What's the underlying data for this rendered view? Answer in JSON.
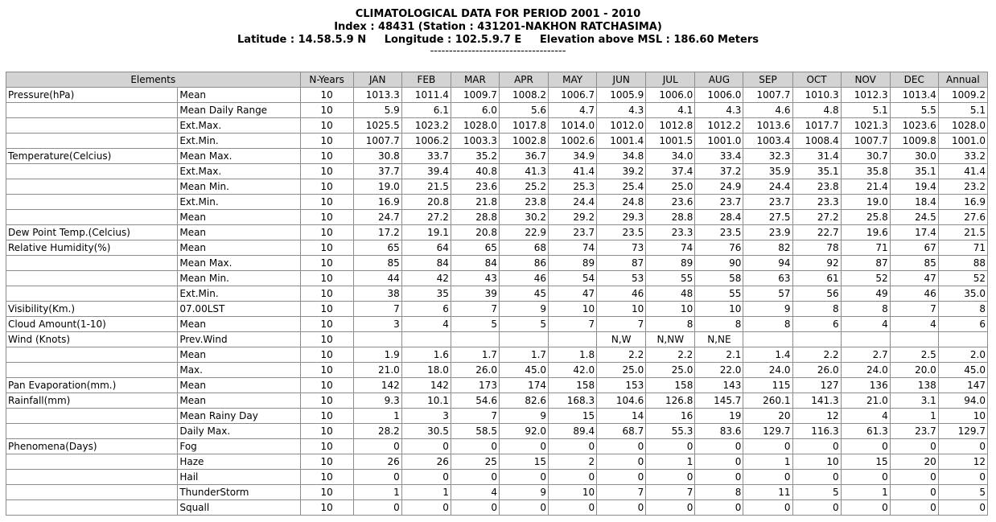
{
  "header": {
    "title": "CLIMATOLOGICAL DATA FOR PERIOD 2001 - 2010",
    "index_line": "Index : 48431 (Station : 431201-NAKHON RATCHASIMA)",
    "coords_line": "Latitude : 14.58.5.9 N     Longitude : 102.5.9.7 E     Elevation above MSL : 186.60 Meters",
    "divider": "------------------------------------"
  },
  "table": {
    "columns": [
      "Elements",
      "N-Years",
      "JAN",
      "FEB",
      "MAR",
      "APR",
      "MAY",
      "JUN",
      "JUL",
      "AUG",
      "SEP",
      "OCT",
      "NOV",
      "DEC",
      "Annual"
    ],
    "rows": [
      {
        "group": "Pressure(hPa)",
        "stat": "Mean",
        "n": "10",
        "v": [
          "1013.3",
          "1011.4",
          "1009.7",
          "1008.2",
          "1006.7",
          "1005.9",
          "1006.0",
          "1006.0",
          "1007.7",
          "1010.3",
          "1012.3",
          "1013.4",
          "1009.2"
        ]
      },
      {
        "group": "",
        "stat": "Mean Daily Range",
        "n": "10",
        "v": [
          "5.9",
          "6.1",
          "6.0",
          "5.6",
          "4.7",
          "4.3",
          "4.1",
          "4.3",
          "4.6",
          "4.8",
          "5.1",
          "5.5",
          "5.1"
        ]
      },
      {
        "group": "",
        "stat": "Ext.Max.",
        "n": "10",
        "v": [
          "1025.5",
          "1023.2",
          "1028.0",
          "1017.8",
          "1014.0",
          "1012.0",
          "1012.8",
          "1012.2",
          "1013.6",
          "1017.7",
          "1021.3",
          "1023.6",
          "1028.0"
        ]
      },
      {
        "group": "",
        "stat": "Ext.Min.",
        "n": "10",
        "v": [
          "1007.7",
          "1006.2",
          "1003.3",
          "1002.8",
          "1002.6",
          "1001.4",
          "1001.5",
          "1001.0",
          "1003.4",
          "1008.4",
          "1007.7",
          "1009.8",
          "1001.0"
        ]
      },
      {
        "group": "Temperature(Celcius)",
        "stat": "Mean Max.",
        "n": "10",
        "v": [
          "30.8",
          "33.7",
          "35.2",
          "36.7",
          "34.9",
          "34.8",
          "34.0",
          "33.4",
          "32.3",
          "31.4",
          "30.7",
          "30.0",
          "33.2"
        ]
      },
      {
        "group": "",
        "stat": "Ext.Max.",
        "n": "10",
        "v": [
          "37.7",
          "39.4",
          "40.8",
          "41.3",
          "41.4",
          "39.2",
          "37.4",
          "37.2",
          "35.9",
          "35.1",
          "35.8",
          "35.1",
          "41.4"
        ]
      },
      {
        "group": "",
        "stat": "Mean Min.",
        "n": "10",
        "v": [
          "19.0",
          "21.5",
          "23.6",
          "25.2",
          "25.3",
          "25.4",
          "25.0",
          "24.9",
          "24.4",
          "23.8",
          "21.4",
          "19.4",
          "23.2"
        ]
      },
      {
        "group": "",
        "stat": "Ext.Min.",
        "n": "10",
        "v": [
          "16.9",
          "20.8",
          "21.8",
          "23.8",
          "24.4",
          "24.8",
          "23.6",
          "23.7",
          "23.7",
          "23.3",
          "19.0",
          "18.4",
          "16.9"
        ]
      },
      {
        "group": "",
        "stat": "Mean",
        "n": "10",
        "v": [
          "24.7",
          "27.2",
          "28.8",
          "30.2",
          "29.2",
          "29.3",
          "28.8",
          "28.4",
          "27.5",
          "27.2",
          "25.8",
          "24.5",
          "27.6"
        ]
      },
      {
        "group": "Dew Point Temp.(Celcius)",
        "stat": "Mean",
        "n": "10",
        "v": [
          "17.2",
          "19.1",
          "20.8",
          "22.9",
          "23.7",
          "23.5",
          "23.3",
          "23.5",
          "23.9",
          "22.7",
          "19.6",
          "17.4",
          "21.5"
        ]
      },
      {
        "group": "Relative Humidity(%)",
        "stat": "Mean",
        "n": "10",
        "v": [
          "65",
          "64",
          "65",
          "68",
          "74",
          "73",
          "74",
          "76",
          "82",
          "78",
          "71",
          "67",
          "71"
        ]
      },
      {
        "group": "",
        "stat": "Mean Max.",
        "n": "10",
        "v": [
          "85",
          "84",
          "84",
          "86",
          "89",
          "87",
          "89",
          "90",
          "94",
          "92",
          "87",
          "85",
          "88"
        ]
      },
      {
        "group": "",
        "stat": "Mean Min.",
        "n": "10",
        "v": [
          "44",
          "42",
          "43",
          "46",
          "54",
          "53",
          "55",
          "58",
          "63",
          "61",
          "52",
          "47",
          "52"
        ]
      },
      {
        "group": "",
        "stat": "Ext.Min.",
        "n": "10",
        "v": [
          "38",
          "35",
          "39",
          "45",
          "47",
          "46",
          "48",
          "55",
          "57",
          "56",
          "49",
          "46",
          "35.0"
        ]
      },
      {
        "group": "Visibility(Km.)",
        "stat": "07.00LST",
        "n": "10",
        "v": [
          "7",
          "6",
          "7",
          "9",
          "10",
          "10",
          "10",
          "10",
          "9",
          "8",
          "8",
          "7",
          "8"
        ]
      },
      {
        "group": "Cloud Amount(1-10)",
        "stat": "Mean",
        "n": "10",
        "v": [
          "3",
          "4",
          "5",
          "5",
          "7",
          "7",
          "8",
          "8",
          "8",
          "6",
          "4",
          "4",
          "6"
        ]
      },
      {
        "group": "Wind (Knots)",
        "stat": "Prev.Wind",
        "n": "10",
        "v": [
          "",
          "",
          "",
          "",
          "",
          "N,W",
          "N,NW",
          "N,NE",
          "",
          "",
          "",
          "",
          ""
        ],
        "center": true
      },
      {
        "group": "",
        "stat": "Mean",
        "n": "10",
        "v": [
          "1.9",
          "1.6",
          "1.7",
          "1.7",
          "1.8",
          "2.2",
          "2.2",
          "2.1",
          "1.4",
          "2.2",
          "2.7",
          "2.5",
          "2.0"
        ]
      },
      {
        "group": "",
        "stat": "Max.",
        "n": "10",
        "v": [
          "21.0",
          "18.0",
          "26.0",
          "45.0",
          "42.0",
          "25.0",
          "25.0",
          "22.0",
          "24.0",
          "26.0",
          "24.0",
          "20.0",
          "45.0"
        ]
      },
      {
        "group": "Pan Evaporation(mm.)",
        "stat": "Mean",
        "n": "10",
        "v": [
          "142",
          "142",
          "173",
          "174",
          "158",
          "153",
          "158",
          "143",
          "115",
          "127",
          "136",
          "138",
          "147"
        ]
      },
      {
        "group": "Rainfall(mm)",
        "stat": "Mean",
        "n": "10",
        "v": [
          "9.3",
          "10.1",
          "54.6",
          "82.6",
          "168.3",
          "104.6",
          "126.8",
          "145.7",
          "260.1",
          "141.3",
          "21.0",
          "3.1",
          "94.0"
        ]
      },
      {
        "group": "",
        "stat": "Mean Rainy Day",
        "n": "10",
        "v": [
          "1",
          "3",
          "7",
          "9",
          "15",
          "14",
          "16",
          "19",
          "20",
          "12",
          "4",
          "1",
          "10"
        ]
      },
      {
        "group": "",
        "stat": "Daily Max.",
        "n": "10",
        "v": [
          "28.2",
          "30.5",
          "58.5",
          "92.0",
          "89.4",
          "68.7",
          "55.3",
          "83.6",
          "129.7",
          "116.3",
          "61.3",
          "23.7",
          "129.7"
        ]
      },
      {
        "group": "Phenomena(Days)",
        "stat": "Fog",
        "n": "10",
        "v": [
          "0",
          "0",
          "0",
          "0",
          "0",
          "0",
          "0",
          "0",
          "0",
          "0",
          "0",
          "0",
          "0"
        ]
      },
      {
        "group": "",
        "stat": "Haze",
        "n": "10",
        "v": [
          "26",
          "26",
          "25",
          "15",
          "2",
          "0",
          "1",
          "0",
          "1",
          "10",
          "15",
          "20",
          "12"
        ]
      },
      {
        "group": "",
        "stat": "Hail",
        "n": "10",
        "v": [
          "0",
          "0",
          "0",
          "0",
          "0",
          "0",
          "0",
          "0",
          "0",
          "0",
          "0",
          "0",
          "0"
        ]
      },
      {
        "group": "",
        "stat": "ThunderStorm",
        "n": "10",
        "v": [
          "1",
          "1",
          "4",
          "9",
          "10",
          "7",
          "7",
          "8",
          "11",
          "5",
          "1",
          "0",
          "5"
        ]
      },
      {
        "group": "",
        "stat": "Squall",
        "n": "10",
        "v": [
          "0",
          "0",
          "0",
          "0",
          "0",
          "0",
          "0",
          "0",
          "0",
          "0",
          "0",
          "0",
          "0"
        ]
      }
    ]
  }
}
